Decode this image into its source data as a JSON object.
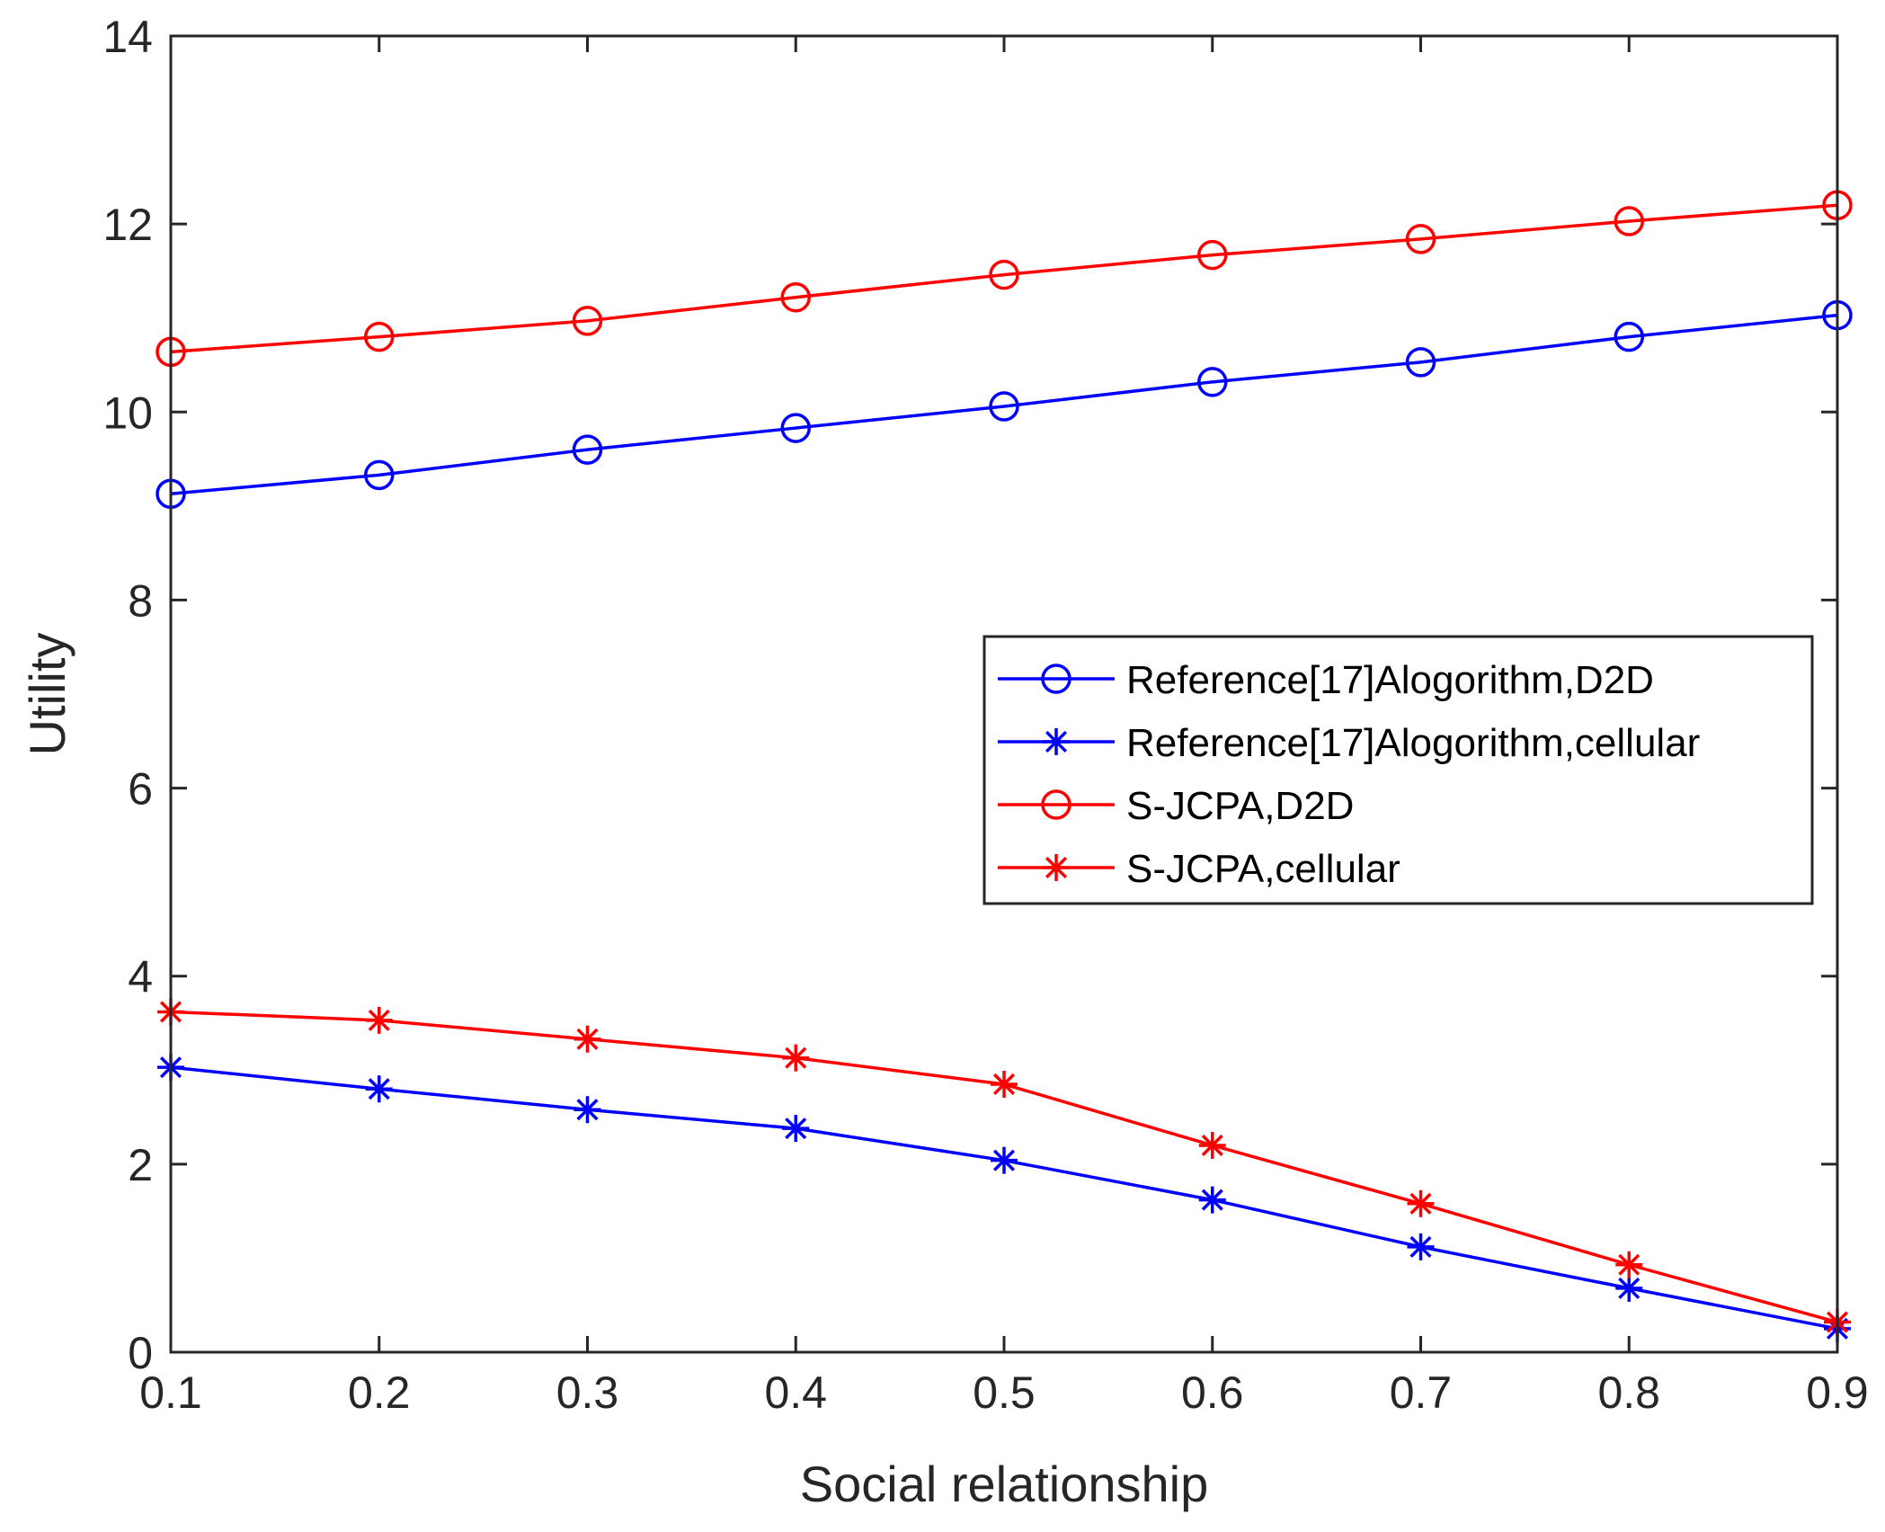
{
  "chart_data": {
    "type": "line",
    "title": "",
    "xlabel": "Social relationship",
    "ylabel": "Utility",
    "xlim": [
      0.1,
      0.9
    ],
    "ylim": [
      0,
      14
    ],
    "x_ticks": [
      "0.1",
      "0.2",
      "0.3",
      "0.4",
      "0.5",
      "0.6",
      "0.7",
      "0.8",
      "0.9"
    ],
    "y_ticks": [
      "0",
      "2",
      "4",
      "6",
      "8",
      "10",
      "12",
      "14"
    ],
    "grid": false,
    "legend_position": "center-right",
    "x": [
      0.1,
      0.2,
      0.3,
      0.4,
      0.5,
      0.6,
      0.7,
      0.8,
      0.9
    ],
    "series": [
      {
        "name": "Reference[17]Alogorithm,D2D",
        "color": "#0000ff",
        "marker": "circle",
        "values": [
          9.13,
          9.33,
          9.6,
          9.83,
          10.06,
          10.32,
          10.53,
          10.8,
          11.03
        ]
      },
      {
        "name": "Reference[17]Alogorithm,cellular",
        "color": "#0000ff",
        "marker": "asterisk",
        "values": [
          3.03,
          2.8,
          2.58,
          2.38,
          2.04,
          1.62,
          1.12,
          0.68,
          0.25
        ]
      },
      {
        "name": "S-JCPA,D2D",
        "color": "#ff0000",
        "marker": "circle",
        "values": [
          10.64,
          10.8,
          10.97,
          11.22,
          11.46,
          11.67,
          11.84,
          12.03,
          12.2
        ]
      },
      {
        "name": "S-JCPA,cellular",
        "color": "#ff0000",
        "marker": "asterisk",
        "values": [
          3.62,
          3.53,
          3.33,
          3.13,
          2.85,
          2.2,
          1.58,
          0.93,
          0.32
        ]
      }
    ]
  }
}
